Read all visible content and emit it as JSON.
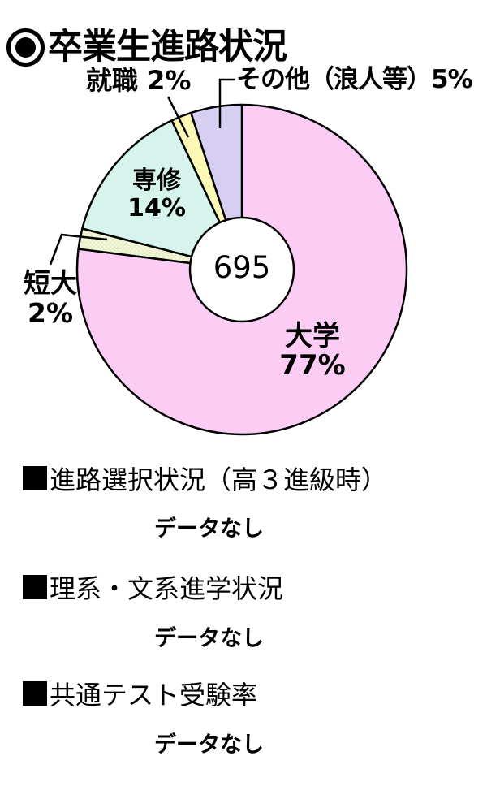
{
  "page": {
    "background": "#ffffff"
  },
  "header": {
    "marker": "◉",
    "title": "卒業生進路状況"
  },
  "chart_data": {
    "type": "pie",
    "style": "donut",
    "title": "卒業生進路状況",
    "center_label": "695",
    "start_angle_deg": 0,
    "clockwise": true,
    "hole_ratio": 0.315,
    "outline_color": "#000000",
    "slices": [
      {
        "label": "大学",
        "pct": 77,
        "color": "#fbcdf5",
        "pattern": null
      },
      {
        "label": "短大",
        "pct": 2,
        "color": "#e8f0c6",
        "pattern": "white-dots"
      },
      {
        "label": "専修",
        "pct": 14,
        "color": "#d6f3ec",
        "pattern": null
      },
      {
        "label": "就職",
        "pct": 2,
        "color": "#fbf7b5",
        "pattern": null
      },
      {
        "label": "その他（浪人等）",
        "pct": 5,
        "color": "#d6cff2",
        "pattern": null
      }
    ]
  },
  "chart_labels": {
    "shushoku": "就職 2%",
    "sonota": "その他（浪人等）5%",
    "senshu_line1": "専修",
    "senshu_line2": "14%",
    "tandai_line1": "短大",
    "tandai_line2": "2%",
    "daigaku_line1": "大学",
    "daigaku_line2": "77%",
    "center_value": "695"
  },
  "sections": [
    {
      "marker": "■",
      "heading": "進路選択状況（高３進級時）",
      "body": "データなし"
    },
    {
      "marker": "■",
      "heading": "理系・文系進学状況",
      "body": "データなし"
    },
    {
      "marker": "■",
      "heading": "共通テスト受験率",
      "body": "データなし"
    }
  ]
}
